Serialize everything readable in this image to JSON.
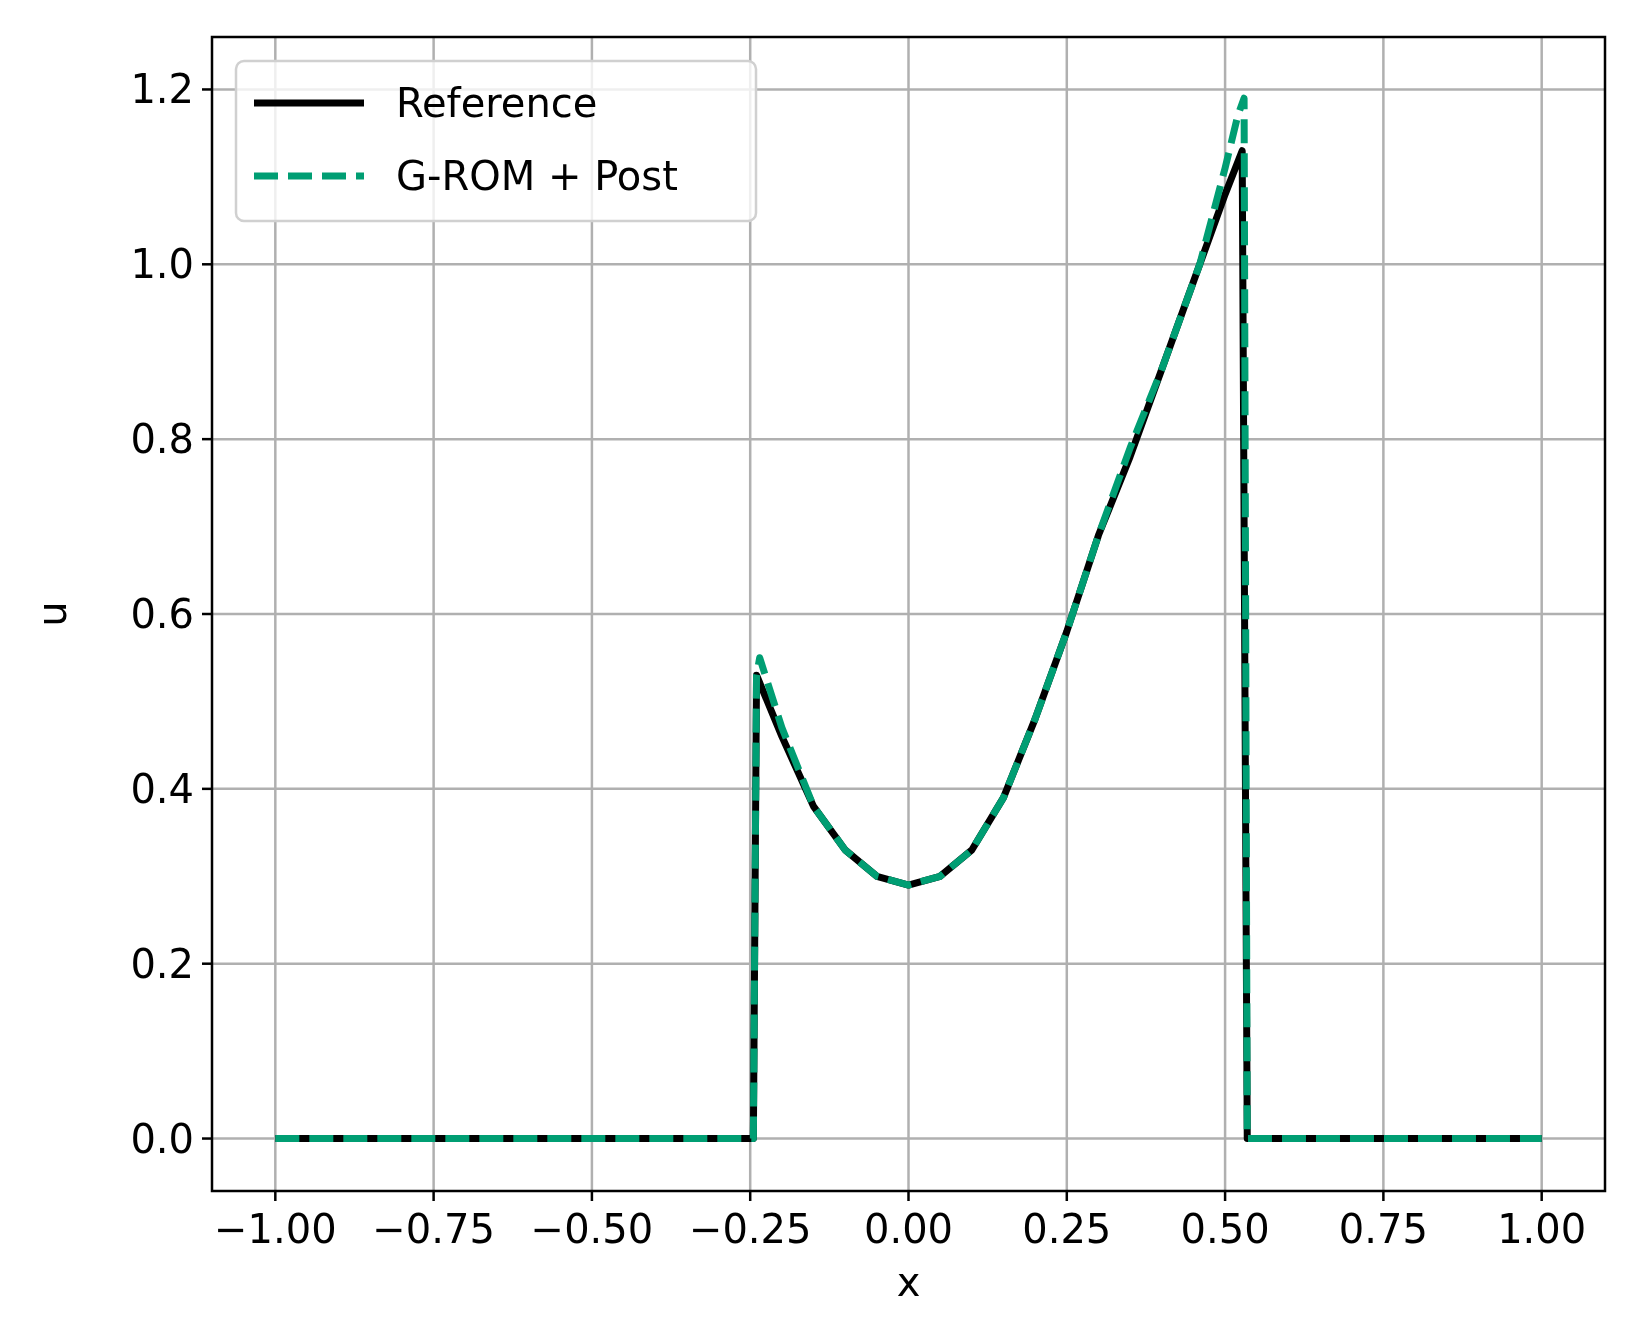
{
  "chart_data": {
    "type": "line",
    "xlabel": "x",
    "ylabel": "u",
    "xlim": [
      -1.1,
      1.1
    ],
    "ylim": [
      -0.06,
      1.26
    ],
    "xticks": [
      {
        "value": -1,
        "label": "−1.00"
      },
      {
        "value": -0.75,
        "label": "−0.75"
      },
      {
        "value": -0.5,
        "label": "−0.50"
      },
      {
        "value": -0.25,
        "label": "−0.25"
      },
      {
        "value": 0,
        "label": "0.00"
      },
      {
        "value": 0.25,
        "label": "0.25"
      },
      {
        "value": 0.5,
        "label": "0.50"
      },
      {
        "value": 0.75,
        "label": "0.75"
      },
      {
        "value": 1,
        "label": "1.00"
      }
    ],
    "yticks": [
      {
        "value": 0,
        "label": "0.0"
      },
      {
        "value": 0.2,
        "label": "0.2"
      },
      {
        "value": 0.4,
        "label": "0.4"
      },
      {
        "value": 0.6,
        "label": "0.6"
      },
      {
        "value": 0.8,
        "label": "0.8"
      },
      {
        "value": 1,
        "label": "1.0"
      },
      {
        "value": 1.2,
        "label": "1.2"
      }
    ],
    "grid": true,
    "legend": "top left",
    "marker": "none",
    "series": [
      {
        "name": "Reference",
        "color": "#000000",
        "line_style": "solid",
        "x": [
          -1,
          -0.5,
          -0.245,
          -0.24,
          -0.2,
          -0.15,
          -0.1,
          -0.05,
          0,
          0.05,
          0.1,
          0.15,
          0.2,
          0.25,
          0.3,
          0.35,
          0.4,
          0.45,
          0.5,
          0.527,
          0.535,
          0.6,
          1
        ],
        "values": [
          0,
          0,
          0,
          0.53,
          0.46,
          0.38,
          0.33,
          0.3,
          0.29,
          0.3,
          0.33,
          0.39,
          0.48,
          0.58,
          0.69,
          0.78,
          0.88,
          0.98,
          1.08,
          1.13,
          0,
          0,
          0
        ]
      },
      {
        "name": "G-ROM + Post",
        "color": "#009e73",
        "line_style": "dashed",
        "x": [
          -1,
          -0.5,
          -0.245,
          -0.24,
          -0.235,
          -0.2,
          -0.15,
          -0.1,
          -0.05,
          0,
          0.05,
          0.1,
          0.15,
          0.2,
          0.25,
          0.3,
          0.35,
          0.4,
          0.43,
          0.46,
          0.5,
          0.52,
          0.53,
          0.535,
          0.6,
          1
        ],
        "values": [
          0,
          0,
          0,
          0.53,
          0.55,
          0.47,
          0.38,
          0.33,
          0.3,
          0.29,
          0.3,
          0.33,
          0.39,
          0.48,
          0.58,
          0.69,
          0.79,
          0.88,
          0.94,
          1.0,
          1.11,
          1.17,
          1.19,
          0,
          0,
          0
        ]
      }
    ]
  }
}
